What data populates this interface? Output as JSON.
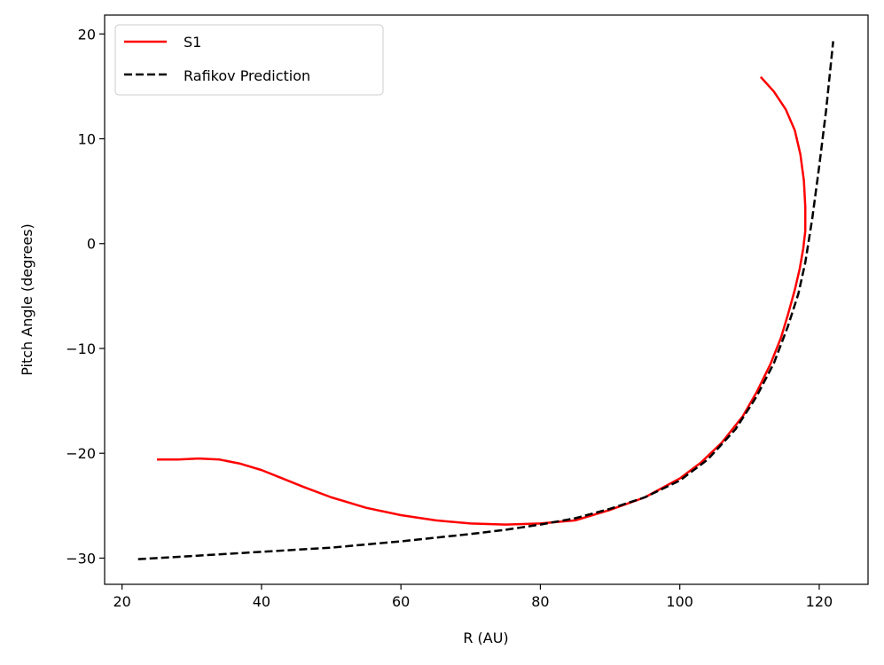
{
  "chart_data": {
    "type": "line",
    "xlabel": "R (AU)",
    "ylabel": "Pitch Angle (degrees)",
    "xlim": [
      17.5,
      127
    ],
    "ylim": [
      -32.5,
      21.8
    ],
    "xticks": [
      20,
      40,
      60,
      80,
      100,
      120
    ],
    "yticks": [
      -30,
      -20,
      -10,
      0,
      10,
      20
    ],
    "xtick_labels": [
      "20",
      "40",
      "60",
      "80",
      "100",
      "120"
    ],
    "ytick_labels": [
      "−30",
      "−20",
      "−10",
      "0",
      "10",
      "20"
    ],
    "legend_position": "top-left",
    "series": [
      {
        "name": "S1",
        "color": "#ff0000",
        "style": "solid",
        "x": [
          25,
          28,
          31,
          34,
          37,
          40,
          43,
          46,
          50,
          55,
          60,
          65,
          70,
          75,
          80,
          85,
          90,
          95,
          100,
          103,
          106,
          109,
          111,
          113,
          114.5,
          115.5,
          116.5,
          117.2,
          117.7,
          118.0,
          118.0,
          117.8,
          117.3,
          116.5,
          115.2,
          113.5,
          111.6
        ],
        "y": [
          -20.6,
          -20.6,
          -20.5,
          -20.6,
          -21.0,
          -21.6,
          -22.4,
          -23.2,
          -24.2,
          -25.2,
          -25.9,
          -26.4,
          -26.7,
          -26.8,
          -26.7,
          -26.4,
          -25.4,
          -24.2,
          -22.4,
          -20.9,
          -19.0,
          -16.5,
          -14.2,
          -11.5,
          -9.0,
          -6.8,
          -4.4,
          -2.4,
          -0.5,
          1.2,
          3.5,
          6.0,
          8.5,
          10.8,
          12.8,
          14.5,
          15.9
        ]
      },
      {
        "name": "Rafikov Prediction",
        "color": "#000000",
        "style": "dashed",
        "x": [
          22.3,
          30,
          40,
          50,
          60,
          70,
          75,
          80,
          85,
          90,
          95,
          100,
          104,
          108,
          111,
          113.5,
          115.5,
          117,
          118,
          119,
          120,
          121,
          122
        ],
        "y": [
          -30.1,
          -29.8,
          -29.4,
          -29.0,
          -28.4,
          -27.7,
          -27.3,
          -26.8,
          -26.2,
          -25.3,
          -24.2,
          -22.6,
          -20.6,
          -17.7,
          -14.6,
          -11.4,
          -7.9,
          -4.8,
          -1.8,
          2.4,
          7.4,
          12.8,
          19.3
        ]
      }
    ]
  }
}
